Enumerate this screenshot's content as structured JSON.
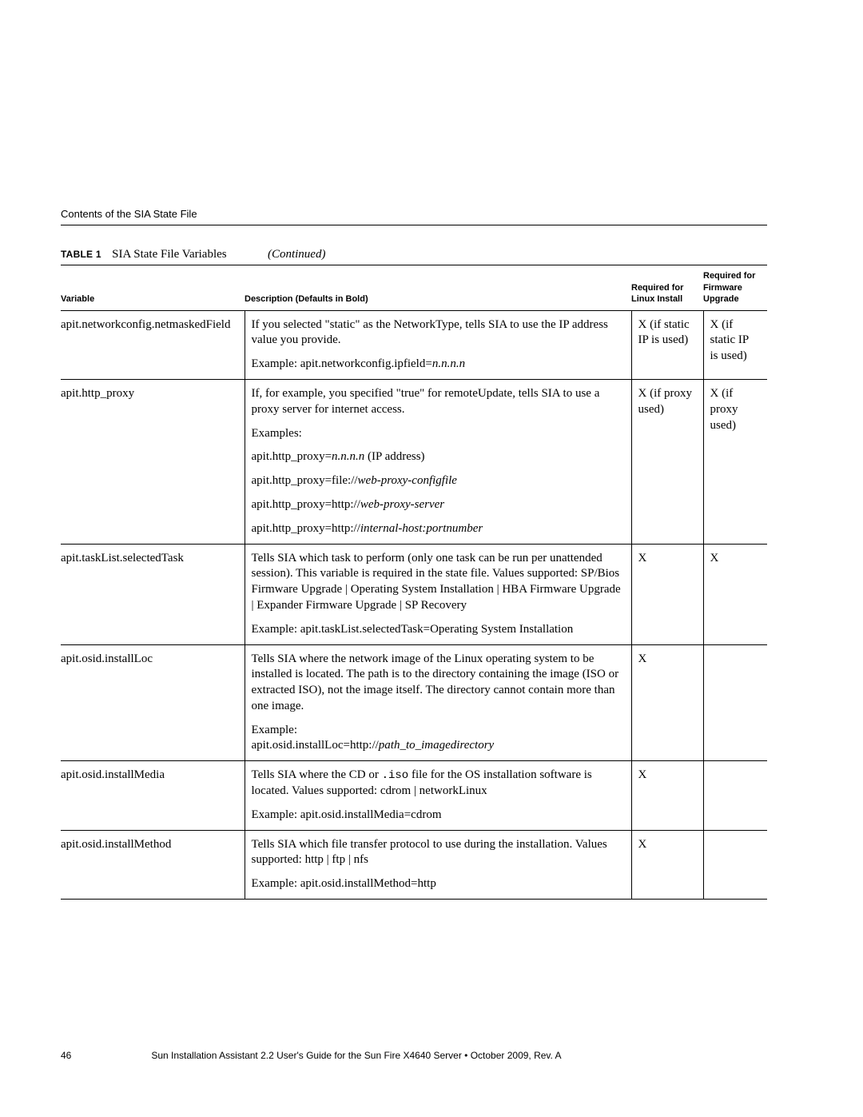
{
  "page": {
    "running_head": "Contents of the SIA State File",
    "footer_page": "46",
    "footer_text": "Sun Installation Assistant 2.2 User's Guide for the Sun Fire X4640 Server   •   October 2009, Rev. A"
  },
  "table": {
    "caption_label": "TABLE 1",
    "caption_title": "SIA State File Variables",
    "caption_cont": "(Continued)",
    "headers": {
      "variable": "Variable",
      "description": "Description (Defaults in Bold)",
      "linux": "Required for Linux Install",
      "firmware": "Required for Firmware Upgrade"
    },
    "rows": [
      {
        "variable": "apit.networkconfig.netmaskedField",
        "linux": "X (if static IP is used)",
        "firmware": "X (if static IP is used)",
        "desc": [
          {
            "t": "If you selected \"static\" as the NetworkType, tells SIA to use the IP address value you provide."
          },
          {
            "pre": "Example: apit.networkconfig.ipfield=",
            "ital": "n.n.n.n"
          }
        ]
      },
      {
        "variable": "apit.http_proxy",
        "linux": "X (if proxy used)",
        "firmware": "X (if proxy used)",
        "desc": [
          {
            "t": "If, for example, you specified \"true\" for remoteUpdate, tells SIA to use a proxy server for internet access."
          },
          {
            "t": "Examples:"
          },
          {
            "pre": "apit.http_proxy=",
            "ital": "n.n.n.n",
            "post": " (IP address)"
          },
          {
            "pre": "apit.http_proxy=file://",
            "ital": "web-proxy-configfile"
          },
          {
            "pre": "apit.http_proxy=http://",
            "ital": "web-proxy-server"
          },
          {
            "pre": "apit.http_proxy=http://",
            "ital": "internal-host:portnumber"
          }
        ]
      },
      {
        "variable": "apit.taskList.selectedTask",
        "linux": "X",
        "firmware": "X",
        "desc": [
          {
            "t": "Tells SIA which task to perform (only one task can be run per unattended session). This variable is required in the state file. Values supported: SP/Bios Firmware Upgrade | Operating System Installation | HBA Firmware Upgrade | Expander Firmware Upgrade | SP Recovery"
          },
          {
            "t": "Example: apit.taskList.selectedTask=Operating System Installation"
          }
        ]
      },
      {
        "variable": "apit.osid.installLoc",
        "linux": "X",
        "firmware": "",
        "desc": [
          {
            "t": "Tells SIA where the network image of the Linux operating system to be installed is located. The path is to the directory containing the image (ISO or extracted ISO), not the image itself. The directory cannot contain more than one image."
          },
          {
            "pre": "Example:\napit.osid.installLoc=http://",
            "ital": "path_to_imagedirectory",
            "wrap": true
          }
        ]
      },
      {
        "variable": "apit.osid.installMedia",
        "linux": "X",
        "firmware": "",
        "desc": [
          {
            "mix": [
              {
                "t": "Tells SIA where the CD or "
              },
              {
                "mono": ".iso"
              },
              {
                "t": " file for the OS installation software is located. Values supported: cdrom | networkLinux"
              }
            ]
          },
          {
            "t": "Example: apit.osid.installMedia=cdrom"
          }
        ]
      },
      {
        "variable": "apit.osid.installMethod",
        "linux": "X",
        "firmware": "",
        "desc": [
          {
            "t": "Tells SIA which file transfer protocol to use during the installation. Values supported: http | ftp | nfs"
          },
          {
            "t": "Example: apit.osid.installMethod=http"
          }
        ]
      }
    ]
  }
}
